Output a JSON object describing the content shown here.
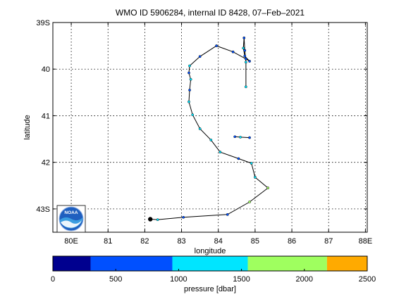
{
  "chart_data": {
    "type": "line",
    "title": "WMO ID 5906284, internal ID 8428, 07–Feb–2021",
    "xlabel": "longitude",
    "ylabel": "latitude",
    "xlim": [
      79.5,
      88.05
    ],
    "ylim": [
      -43.5,
      -39.0
    ],
    "grid": true,
    "x_ticks": [
      80,
      81,
      82,
      83,
      84,
      85,
      86,
      87,
      88
    ],
    "x_tick_labels": [
      "80E",
      "81",
      "82",
      "83",
      "84",
      "85",
      "86",
      "87",
      "88E"
    ],
    "y_ticks": [
      -39,
      -40,
      -41,
      -42,
      -43
    ],
    "y_tick_labels": [
      "39S",
      "40",
      "41",
      "42",
      "43S"
    ],
    "series": [
      {
        "values": [
          {
            "lon": 82.15,
            "lat": -43.22
          },
          {
            "lon": 82.35,
            "lat": -43.23
          },
          {
            "lon": 83.05,
            "lat": -43.18
          },
          {
            "lon": 84.25,
            "lat": -43.12
          },
          {
            "lon": 84.85,
            "lat": -42.85
          },
          {
            "lon": 85.35,
            "lat": -42.55
          },
          {
            "lon": 85.0,
            "lat": -42.32
          },
          {
            "lon": 84.9,
            "lat": -42.02
          },
          {
            "lon": 84.55,
            "lat": -41.92
          },
          {
            "lon": 84.05,
            "lat": -41.78
          },
          {
            "lon": 83.8,
            "lat": -41.52
          },
          {
            "lon": 83.5,
            "lat": -41.28
          },
          {
            "lon": 83.3,
            "lat": -40.98
          },
          {
            "lon": 83.2,
            "lat": -40.7
          },
          {
            "lon": 83.22,
            "lat": -40.45
          },
          {
            "lon": 83.25,
            "lat": -40.22
          },
          {
            "lon": 83.2,
            "lat": -40.08
          },
          {
            "lon": 83.22,
            "lat": -39.93
          },
          {
            "lon": 83.5,
            "lat": -39.73
          },
          {
            "lon": 83.95,
            "lat": -39.5
          },
          {
            "lon": 84.4,
            "lat": -39.63
          },
          {
            "lon": 84.75,
            "lat": -39.78
          },
          {
            "lon": 84.85,
            "lat": -39.83
          },
          {
            "lon": 84.72,
            "lat": -39.72
          },
          {
            "lon": 84.68,
            "lat": -39.55
          },
          {
            "lon": 84.7,
            "lat": -39.33
          },
          {
            "lon": 84.72,
            "lat": -39.6
          },
          {
            "lon": 84.75,
            "lat": -39.85
          },
          {
            "lon": 84.75,
            "lat": -40.38
          }
        ],
        "pressure_dbar": [
          1000,
          1000,
          500,
          500,
          1600,
          2000,
          1200,
          1000,
          500,
          1000,
          1400,
          1000,
          1300,
          1000,
          500,
          1000,
          500,
          1000,
          800,
          500,
          500,
          500,
          500,
          500,
          1000,
          500,
          500,
          1000,
          1000
        ]
      },
      {
        "values": [
          {
            "lon": 84.45,
            "lat": -41.45
          },
          {
            "lon": 84.6,
            "lat": -41.46
          },
          {
            "lon": 84.85,
            "lat": -41.47
          }
        ],
        "pressure_dbar": [
          500,
          1200,
          500
        ]
      }
    ],
    "colorbar": {
      "label": "pressure [dbar]",
      "ticks": [
        0,
        500,
        1000,
        1500,
        2000,
        2500
      ],
      "range": [
        0,
        2500
      ],
      "bands": [
        {
          "from": 0,
          "to": 300,
          "color": "#00008f"
        },
        {
          "from": 300,
          "to": 950,
          "color": "#0050ff"
        },
        {
          "from": 950,
          "to": 1550,
          "color": "#00e5ff"
        },
        {
          "from": 1550,
          "to": 2180,
          "color": "#9fff5f"
        },
        {
          "from": 2180,
          "to": 2500,
          "color": "#ffaa00"
        }
      ]
    },
    "logo": {
      "text": "NOAA"
    }
  }
}
